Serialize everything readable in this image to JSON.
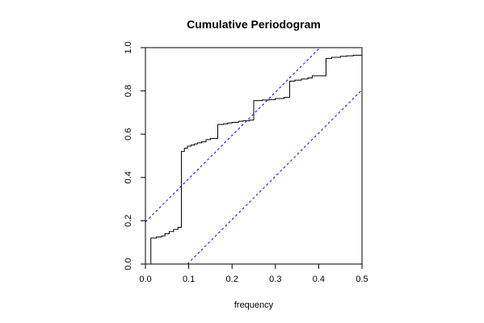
{
  "chart_data": {
    "type": "line",
    "title": "Cumulative Periodogram",
    "xlabel": "frequency",
    "ylabel": "",
    "xlim": [
      0,
      0.5
    ],
    "ylim": [
      0,
      1
    ],
    "x_ticks": [
      "0.0",
      "0.1",
      "0.2",
      "0.3",
      "0.4",
      "0.5"
    ],
    "y_ticks": [
      "0.0",
      "0.2",
      "0.4",
      "0.6",
      "0.8",
      "1.0"
    ],
    "grid": false,
    "legend": "none",
    "series": [
      {
        "style": "step",
        "color": "#000000",
        "points": [
          [
            0.0125,
            0.0
          ],
          [
            0.0125,
            0.12
          ],
          [
            0.025,
            0.125
          ],
          [
            0.0375,
            0.13
          ],
          [
            0.045,
            0.14
          ],
          [
            0.055,
            0.15
          ],
          [
            0.065,
            0.16
          ],
          [
            0.075,
            0.17
          ],
          [
            0.083,
            0.52
          ],
          [
            0.09,
            0.535
          ],
          [
            0.097,
            0.545
          ],
          [
            0.105,
            0.55
          ],
          [
            0.113,
            0.555
          ],
          [
            0.12,
            0.56
          ],
          [
            0.13,
            0.565
          ],
          [
            0.14,
            0.575
          ],
          [
            0.15,
            0.58
          ],
          [
            0.167,
            0.645
          ],
          [
            0.18,
            0.648
          ],
          [
            0.19,
            0.652
          ],
          [
            0.2,
            0.655
          ],
          [
            0.215,
            0.66
          ],
          [
            0.225,
            0.662
          ],
          [
            0.24,
            0.665
          ],
          [
            0.25,
            0.755
          ],
          [
            0.27,
            0.758
          ],
          [
            0.285,
            0.76
          ],
          [
            0.3,
            0.765
          ],
          [
            0.32,
            0.77
          ],
          [
            0.333,
            0.845
          ],
          [
            0.345,
            0.85
          ],
          [
            0.36,
            0.855
          ],
          [
            0.375,
            0.86
          ],
          [
            0.385,
            0.87
          ],
          [
            0.417,
            0.95
          ],
          [
            0.43,
            0.955
          ],
          [
            0.45,
            0.96
          ],
          [
            0.465,
            0.962
          ],
          [
            0.48,
            0.965
          ],
          [
            0.5,
            0.975
          ]
        ]
      },
      {
        "style": "dashed",
        "color": "#0000ff",
        "points": [
          [
            0.0,
            0.195
          ],
          [
            0.403,
            1.0
          ]
        ]
      },
      {
        "style": "dashed",
        "color": "#0000ff",
        "points": [
          [
            0.097,
            0.0
          ],
          [
            0.5,
            0.805
          ]
        ]
      }
    ]
  }
}
